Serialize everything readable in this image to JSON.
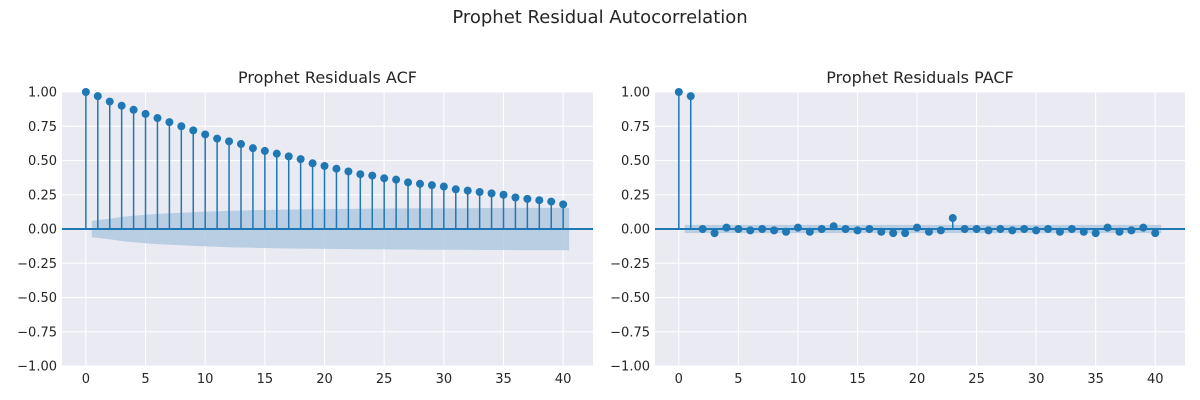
{
  "figure": {
    "title": "Prophet Residual Autocorrelation"
  },
  "colors": {
    "background": "#eaeaf2",
    "grid": "#ffffff",
    "stem": "#1f77b4",
    "band": "#b0c9e0"
  },
  "chart_data": [
    {
      "type": "stem",
      "title": "Prophet Residuals ACF",
      "xlabel": "",
      "ylabel": "",
      "xlim": [
        -2,
        42.5
      ],
      "ylim": [
        -1.0,
        1.0
      ],
      "xticks": [
        "0",
        "5",
        "10",
        "15",
        "20",
        "25",
        "30",
        "35",
        "40"
      ],
      "yticks": [
        "1.00",
        "0.75",
        "0.50",
        "0.25",
        "0.00",
        "−0.25",
        "−0.50",
        "−0.75",
        "−1.00"
      ],
      "grid": true,
      "lags": [
        0,
        1,
        2,
        3,
        4,
        5,
        6,
        7,
        8,
        9,
        10,
        11,
        12,
        13,
        14,
        15,
        16,
        17,
        18,
        19,
        20,
        21,
        22,
        23,
        24,
        25,
        26,
        27,
        28,
        29,
        30,
        31,
        32,
        33,
        34,
        35,
        36,
        37,
        38,
        39,
        40
      ],
      "values": [
        1.0,
        0.97,
        0.93,
        0.9,
        0.87,
        0.84,
        0.81,
        0.78,
        0.75,
        0.72,
        0.69,
        0.66,
        0.64,
        0.62,
        0.59,
        0.57,
        0.55,
        0.53,
        0.51,
        0.48,
        0.46,
        0.44,
        0.42,
        0.4,
        0.39,
        0.37,
        0.36,
        0.34,
        0.33,
        0.32,
        0.31,
        0.29,
        0.28,
        0.27,
        0.26,
        0.25,
        0.23,
        0.22,
        0.21,
        0.2,
        0.18
      ],
      "confidence_band": [
        0.03,
        0.06,
        0.075,
        0.088,
        0.097,
        0.104,
        0.11,
        0.115,
        0.119,
        0.123,
        0.127,
        0.13,
        0.133,
        0.135,
        0.137,
        0.139,
        0.141,
        0.142,
        0.143,
        0.144,
        0.145,
        0.146,
        0.147,
        0.148,
        0.149,
        0.149,
        0.15,
        0.15,
        0.151,
        0.151,
        0.152,
        0.152,
        0.152,
        0.153,
        0.153,
        0.153,
        0.154,
        0.154,
        0.154,
        0.154,
        0.155
      ]
    },
    {
      "type": "stem",
      "title": "Prophet Residuals PACF",
      "xlabel": "",
      "ylabel": "",
      "xlim": [
        -2,
        42.5
      ],
      "ylim": [
        -1.0,
        1.0
      ],
      "xticks": [
        "0",
        "5",
        "10",
        "15",
        "20",
        "25",
        "30",
        "35",
        "40"
      ],
      "yticks": [
        "1.00",
        "0.75",
        "0.50",
        "0.25",
        "0.00",
        "−0.25",
        "−0.50",
        "−0.75",
        "−1.00"
      ],
      "grid": true,
      "lags": [
        0,
        1,
        2,
        3,
        4,
        5,
        6,
        7,
        8,
        9,
        10,
        11,
        12,
        13,
        14,
        15,
        16,
        17,
        18,
        19,
        20,
        21,
        22,
        23,
        24,
        25,
        26,
        27,
        28,
        29,
        30,
        31,
        32,
        33,
        34,
        35,
        36,
        37,
        38,
        39,
        40
      ],
      "values": [
        1.0,
        0.97,
        0.0,
        -0.03,
        0.01,
        0.0,
        -0.01,
        0.0,
        -0.01,
        -0.02,
        0.01,
        -0.02,
        0.0,
        0.02,
        0.0,
        -0.01,
        0.0,
        -0.02,
        -0.03,
        -0.03,
        0.01,
        -0.02,
        -0.01,
        0.08,
        0.0,
        0.0,
        -0.01,
        0.0,
        -0.01,
        0.0,
        -0.01,
        0.0,
        -0.02,
        0.0,
        -0.02,
        -0.03,
        0.01,
        -0.02,
        -0.01,
        0.01,
        -0.03
      ],
      "confidence_band": [
        0.03,
        0.03,
        0.03,
        0.03,
        0.03,
        0.03,
        0.03,
        0.03,
        0.03,
        0.03,
        0.03,
        0.03,
        0.03,
        0.03,
        0.03,
        0.03,
        0.03,
        0.03,
        0.03,
        0.03,
        0.03,
        0.03,
        0.03,
        0.03,
        0.03,
        0.03,
        0.03,
        0.03,
        0.03,
        0.03,
        0.03,
        0.03,
        0.03,
        0.03,
        0.03,
        0.03,
        0.03,
        0.03,
        0.03,
        0.03,
        0.03
      ]
    }
  ]
}
